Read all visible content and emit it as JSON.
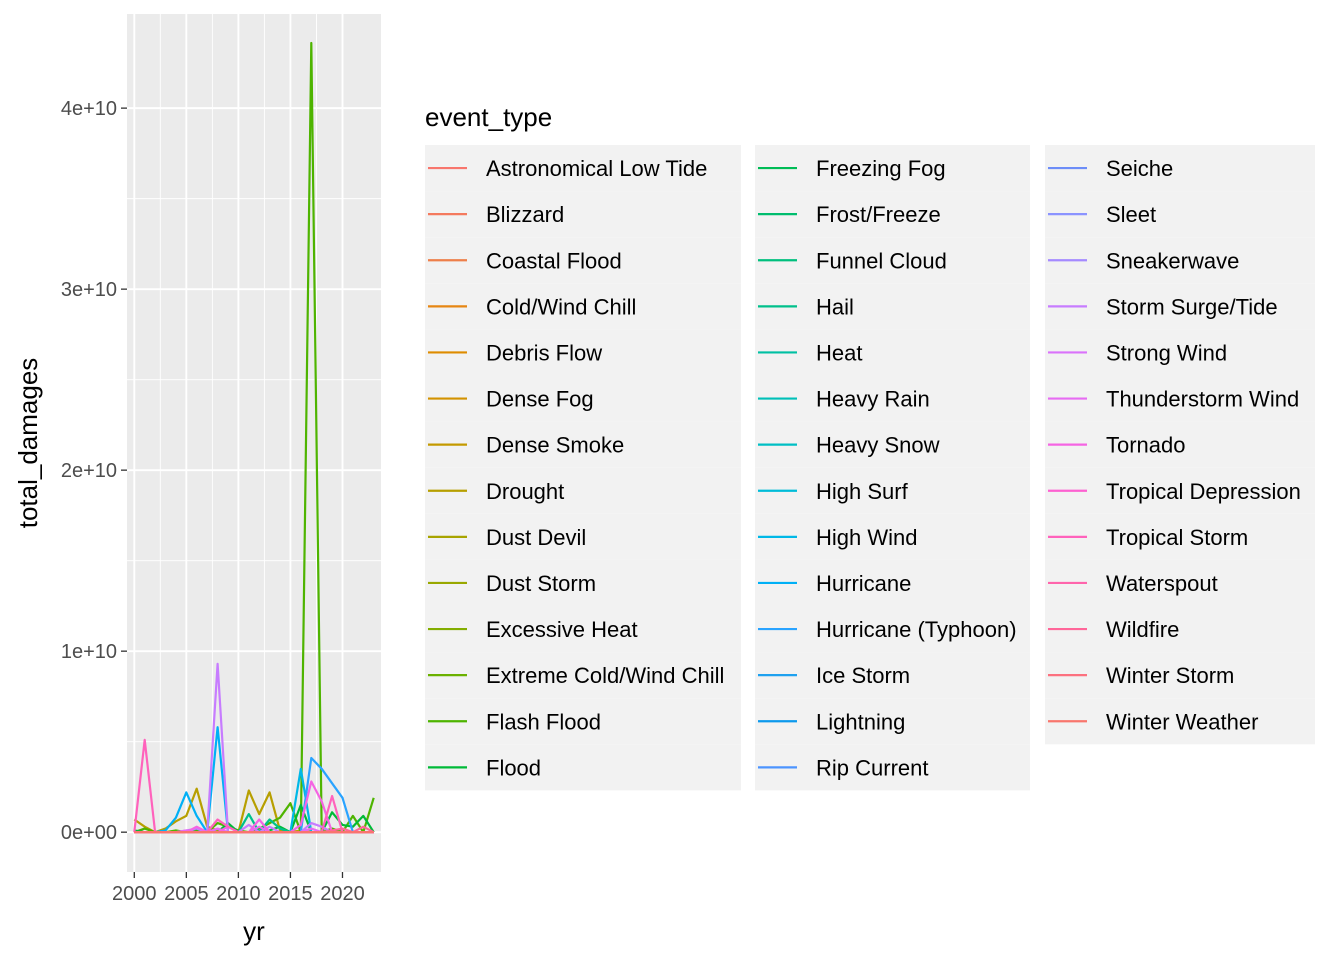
{
  "chart_data": {
    "type": "line",
    "title": "",
    "xlabel": "yr",
    "ylabel": "total_damages",
    "xlim": [
      1999.3,
      2023.7
    ],
    "ylim": [
      -2200000000.0,
      45200000000.0
    ],
    "x_ticks": [
      2000,
      2005,
      2010,
      2015,
      2020
    ],
    "x_tick_labels": [
      "2000",
      "2005",
      "2010",
      "2015",
      "2020"
    ],
    "y_ticks": [
      0,
      10000000000,
      20000000000,
      30000000000,
      40000000000
    ],
    "y_tick_labels": [
      "0e+00",
      "1e+10",
      "2e+10",
      "3e+10",
      "4e+10"
    ],
    "grid": true,
    "legend": {
      "title": "event_type",
      "placement": "right",
      "columns": 3
    },
    "series": [
      {
        "name": "Astronomical Low Tide",
        "color": "#F8766D",
        "x": [
          2000,
          2023
        ],
        "y": [
          0,
          0
        ]
      },
      {
        "name": "Blizzard",
        "color": "#F47A5E",
        "x": [
          2000,
          2023
        ],
        "y": [
          0,
          0
        ]
      },
      {
        "name": "Coastal Flood",
        "color": "#EE7F4A",
        "x": [
          2000,
          2023
        ],
        "y": [
          0,
          0
        ]
      },
      {
        "name": "Cold/Wind Chill",
        "color": "#E68613",
        "x": [
          2000,
          2023
        ],
        "y": [
          0,
          0
        ]
      },
      {
        "name": "Debris Flow",
        "color": "#DE8C00",
        "x": [
          2000,
          2023
        ],
        "y": [
          0,
          0
        ]
      },
      {
        "name": "Dense Fog",
        "color": "#D39200",
        "x": [
          2000,
          2023
        ],
        "y": [
          0,
          0
        ]
      },
      {
        "name": "Dense Smoke",
        "color": "#C49A00",
        "x": [
          2000,
          2023
        ],
        "y": [
          0,
          0
        ]
      },
      {
        "name": "Drought",
        "color": "#B79F00",
        "x": [
          2000,
          2001,
          2002,
          2003,
          2004,
          2005,
          2006,
          2007,
          2008,
          2009,
          2010,
          2011,
          2012,
          2013,
          2014,
          2015,
          2016,
          2017,
          2018,
          2019,
          2020,
          2021,
          2022,
          2023
        ],
        "y": [
          700000000,
          300000000,
          0,
          200000000,
          600000000,
          900000000,
          2400000000,
          300000000,
          100000000,
          0,
          0,
          2300000000,
          1000000000,
          2200000000,
          100000000,
          0,
          100000000,
          0,
          0,
          0,
          0,
          0,
          0,
          0
        ]
      },
      {
        "name": "Dust Devil",
        "color": "#A8A400",
        "x": [
          2000,
          2023
        ],
        "y": [
          0,
          0
        ]
      },
      {
        "name": "Dust Storm",
        "color": "#99A800",
        "x": [
          2000,
          2023
        ],
        "y": [
          0,
          0
        ]
      },
      {
        "name": "Excessive Heat",
        "color": "#83AD00",
        "x": [
          2000,
          2023
        ],
        "y": [
          0,
          0
        ]
      },
      {
        "name": "Extreme Cold/Wind Chill",
        "color": "#6BB100",
        "x": [
          2000,
          2023
        ],
        "y": [
          0,
          0
        ]
      },
      {
        "name": "Flash Flood",
        "color": "#4EB400",
        "x": [
          2000,
          2001,
          2002,
          2003,
          2004,
          2005,
          2006,
          2007,
          2008,
          2009,
          2010,
          2011,
          2012,
          2013,
          2014,
          2015,
          2016,
          2017,
          2018,
          2019,
          2020,
          2021,
          2022,
          2023
        ],
        "y": [
          0,
          200000000,
          0,
          0,
          100000000,
          0,
          100000000,
          0,
          500000000,
          300000000,
          100000000,
          0,
          200000000,
          500000000,
          800000000,
          1600000000,
          0,
          43600000000,
          0,
          200000000,
          0,
          900000000,
          0,
          1900000000
        ]
      },
      {
        "name": "Flood",
        "color": "#00BA38",
        "x": [
          2000,
          2001,
          2002,
          2003,
          2004,
          2005,
          2006,
          2007,
          2008,
          2009,
          2010,
          2011,
          2012,
          2013,
          2014,
          2015,
          2016,
          2017,
          2018,
          2019,
          2020,
          2021,
          2022,
          2023
        ],
        "y": [
          100000000,
          0,
          0,
          0,
          0,
          0,
          200000000,
          0,
          0,
          500000000,
          0,
          0,
          0,
          100000000,
          300000000,
          0,
          1500000000,
          0,
          0,
          1100000000,
          400000000,
          300000000,
          900000000,
          0
        ]
      },
      {
        "name": "Freezing Fog",
        "color": "#00BC56",
        "x": [
          2000,
          2023
        ],
        "y": [
          0,
          0
        ]
      },
      {
        "name": "Frost/Freeze",
        "color": "#00BD6E",
        "x": [
          2000,
          2023
        ],
        "y": [
          0,
          0
        ]
      },
      {
        "name": "Funnel Cloud",
        "color": "#00BF7D",
        "x": [
          2000,
          2023
        ],
        "y": [
          0,
          0
        ]
      },
      {
        "name": "Hail",
        "color": "#00C08B",
        "x": [
          2000,
          2001,
          2002,
          2003,
          2004,
          2005,
          2006,
          2007,
          2008,
          2009,
          2010,
          2011,
          2012,
          2013,
          2014,
          2015,
          2016,
          2017,
          2018,
          2019,
          2020,
          2021,
          2022,
          2023
        ],
        "y": [
          0,
          0,
          0,
          0,
          0,
          0,
          0,
          0,
          0,
          0,
          0,
          1000000000,
          0,
          700000000,
          200000000,
          0,
          0,
          0,
          0,
          0,
          0,
          0,
          0,
          0
        ]
      },
      {
        "name": "Heat",
        "color": "#00C0A3",
        "x": [
          2000,
          2023
        ],
        "y": [
          0,
          0
        ]
      },
      {
        "name": "Heavy Rain",
        "color": "#00C0B8",
        "x": [
          2000,
          2023
        ],
        "y": [
          0,
          0
        ]
      },
      {
        "name": "Heavy Snow",
        "color": "#00BFC4",
        "x": [
          2000,
          2023
        ],
        "y": [
          0,
          0
        ]
      },
      {
        "name": "High Surf",
        "color": "#00BCD8",
        "x": [
          2000,
          2023
        ],
        "y": [
          0,
          0
        ]
      },
      {
        "name": "High Wind",
        "color": "#00B8E7",
        "x": [
          2000,
          2001,
          2002,
          2003,
          2004,
          2005,
          2006,
          2007,
          2008,
          2009,
          2010,
          2011,
          2012,
          2013,
          2014,
          2015,
          2016,
          2017,
          2018,
          2019,
          2020,
          2021,
          2022,
          2023
        ],
        "y": [
          0,
          0,
          0,
          0,
          0,
          0,
          0,
          100000000,
          0,
          0,
          0,
          0,
          0,
          0,
          0,
          0,
          3500000000,
          0,
          0,
          0,
          0,
          0,
          0,
          0
        ]
      },
      {
        "name": "Hurricane",
        "color": "#00B0F6",
        "x": [
          2000,
          2001,
          2002,
          2003,
          2004,
          2005,
          2006,
          2007,
          2008,
          2009
        ],
        "y": [
          0,
          0,
          0,
          100000000,
          800000000,
          2200000000,
          900000000,
          0,
          5800000000,
          0
        ]
      },
      {
        "name": "Hurricane (Typhoon)",
        "color": "#29A3FF",
        "x": [
          2016,
          2017,
          2018,
          2019,
          2020,
          2021
        ],
        "y": [
          0,
          4100000000,
          3500000000,
          2700000000,
          1900000000,
          0
        ]
      },
      {
        "name": "Ice Storm",
        "color": "#1FA1EF",
        "x": [
          2000,
          2023
        ],
        "y": [
          0,
          0
        ]
      },
      {
        "name": "Lightning",
        "color": "#0C99EC",
        "x": [
          2000,
          2023
        ],
        "y": [
          0,
          0
        ]
      },
      {
        "name": "Rip Current",
        "color": "#4C94FF",
        "x": [
          2000,
          2023
        ],
        "y": [
          0,
          0
        ]
      },
      {
        "name": "Seiche",
        "color": "#6D8DF8",
        "x": [
          2000,
          2023
        ],
        "y": [
          0,
          0
        ]
      },
      {
        "name": "Sleet",
        "color": "#8B93FF",
        "x": [
          2000,
          2023
        ],
        "y": [
          0,
          0
        ]
      },
      {
        "name": "Sneakerwave",
        "color": "#A58AFF",
        "x": [
          2000,
          2023
        ],
        "y": [
          0,
          0
        ]
      },
      {
        "name": "Storm Surge/Tide",
        "color": "#C77CFF",
        "x": [
          2000,
          2001,
          2002,
          2003,
          2004,
          2005,
          2006,
          2007,
          2008,
          2009,
          2010,
          2011,
          2012,
          2013,
          2014,
          2015,
          2016,
          2017,
          2018,
          2019,
          2020,
          2021,
          2022,
          2023
        ],
        "y": [
          0,
          0,
          0,
          0,
          0,
          100000000,
          200000000,
          0,
          9300000000,
          0,
          0,
          400000000,
          0,
          300000000,
          0,
          0,
          0,
          500000000,
          300000000,
          0,
          0,
          0,
          0,
          0
        ]
      },
      {
        "name": "Strong Wind",
        "color": "#DA72FB",
        "x": [
          2000,
          2023
        ],
        "y": [
          0,
          0
        ]
      },
      {
        "name": "Thunderstorm Wind",
        "color": "#E76BF3",
        "x": [
          2000,
          2001,
          2002,
          2003,
          2004,
          2005,
          2006,
          2007,
          2008,
          2009,
          2010,
          2011,
          2012,
          2013,
          2014,
          2015,
          2016,
          2017,
          2018,
          2019,
          2020,
          2021,
          2022,
          2023
        ],
        "y": [
          0,
          0,
          0,
          0,
          0,
          100000000,
          0,
          0,
          200000000,
          0,
          0,
          0,
          300000000,
          0,
          0,
          0,
          0,
          200000000,
          0,
          0,
          0,
          0,
          0,
          0
        ]
      },
      {
        "name": "Tornado",
        "color": "#F564E3",
        "x": [
          2000,
          2001,
          2002,
          2003,
          2004,
          2005,
          2006,
          2007,
          2008,
          2009,
          2010,
          2011,
          2012,
          2013,
          2014,
          2015,
          2016,
          2017,
          2018,
          2019,
          2020,
          2021,
          2022,
          2023
        ],
        "y": [
          0,
          0,
          0,
          0,
          0,
          0,
          300000000,
          0,
          0,
          300000000,
          0,
          0,
          700000000,
          0,
          0,
          0,
          400000000,
          2800000000,
          1700000000,
          0,
          0,
          0,
          0,
          0
        ]
      },
      {
        "name": "Tropical Depression",
        "color": "#FD61D1",
        "x": [
          2000,
          2023
        ],
        "y": [
          0,
          0
        ]
      },
      {
        "name": "Tropical Storm",
        "color": "#FF62BC",
        "x": [
          2000,
          2001,
          2002,
          2003,
          2004,
          2005,
          2006,
          2007,
          2008,
          2009,
          2010,
          2011,
          2012,
          2013,
          2014,
          2015,
          2016,
          2017,
          2018,
          2019,
          2020,
          2021,
          2022,
          2023
        ],
        "y": [
          0,
          5100000000,
          0,
          0,
          0,
          0,
          0,
          0,
          700000000,
          300000000,
          0,
          0,
          0,
          0,
          0,
          0,
          0,
          0,
          0,
          2000000000,
          0,
          0,
          0,
          0
        ]
      },
      {
        "name": "Waterspout",
        "color": "#FF65AC",
        "x": [
          2000,
          2023
        ],
        "y": [
          0,
          0
        ]
      },
      {
        "name": "Wildfire",
        "color": "#FF6699",
        "x": [
          2000,
          2001,
          2002,
          2003,
          2004,
          2005,
          2006,
          2007,
          2008,
          2009,
          2010,
          2011,
          2012,
          2013,
          2014,
          2015,
          2016,
          2017,
          2018,
          2019,
          2020,
          2021,
          2022,
          2023
        ],
        "y": [
          0,
          0,
          0,
          0,
          0,
          0,
          0,
          0,
          0,
          0,
          0,
          0,
          0,
          0,
          0,
          0,
          0,
          0,
          0,
          100000000,
          200000000,
          0,
          300000000,
          0
        ]
      },
      {
        "name": "Winter Storm",
        "color": "#FC717F",
        "x": [
          2000,
          2023
        ],
        "y": [
          0,
          0
        ]
      },
      {
        "name": "Winter Weather",
        "color": "#F8766D",
        "x": [
          2000,
          2023
        ],
        "y": [
          0,
          0
        ]
      }
    ]
  }
}
